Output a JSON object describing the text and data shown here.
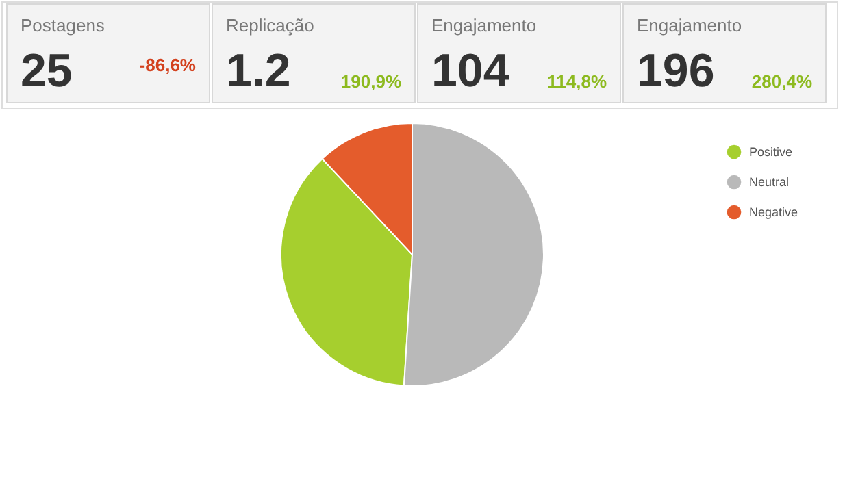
{
  "chart_data": [
    {
      "type": "other",
      "annotations": [
        "Postagens",
        "25",
        "-86,6%",
        "Replicação",
        "1.2",
        "190,9%",
        "Engajamento",
        "104",
        "114,8%",
        "Engajamento",
        "196",
        "280,4%"
      ],
      "colors": [
        "#d3411e",
        "#8dba1f",
        "#8dba1f",
        "#8dba1f"
      ]
    },
    {
      "type": "pie",
      "categories": [
        "Positive",
        "Neutral",
        "Negative"
      ],
      "values": [
        37,
        51,
        12
      ],
      "colors": [
        "#a6cf2e",
        "#b9b9b9",
        "#e45c2c"
      ],
      "legend": "top right"
    }
  ]
}
